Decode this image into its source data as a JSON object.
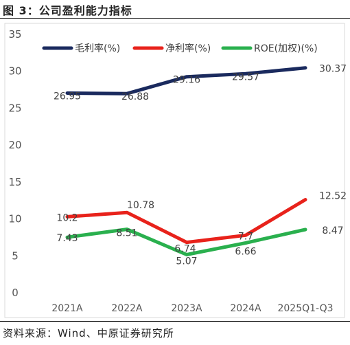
{
  "figure_title": "图 3：公司盈利能力指标",
  "source": "资料来源：Wind、中原证券研究所",
  "chart_data": {
    "type": "line",
    "categories": [
      "2021A",
      "2022A",
      "2023A",
      "2024A",
      "2025Q1-Q3"
    ],
    "ylim": [
      0,
      35
    ],
    "yticks": [
      0,
      5,
      10,
      15,
      20,
      25,
      30,
      35
    ],
    "grid": false,
    "legend_position": "top",
    "series": [
      {
        "name": "毛利率(%)",
        "color": "#1a2a5e",
        "values": [
          26.95,
          26.88,
          29.16,
          29.57,
          30.37
        ],
        "labels": [
          "26.95",
          "26.88",
          "29.16",
          "29.57",
          "30.37"
        ]
      },
      {
        "name": "净利率(%)",
        "color": "#e8221b",
        "values": [
          10.2,
          10.78,
          6.74,
          7.7,
          12.52
        ],
        "labels": [
          "10.2",
          "10.78",
          "6.74",
          "7.7",
          "12.52"
        ]
      },
      {
        "name": "ROE(加权)(%)",
        "color": "#2ab04e",
        "values": [
          7.43,
          8.51,
          5.07,
          6.66,
          8.47
        ],
        "labels": [
          "7.43",
          "8.51",
          "5.07",
          "6.66",
          "8.47"
        ]
      }
    ]
  }
}
